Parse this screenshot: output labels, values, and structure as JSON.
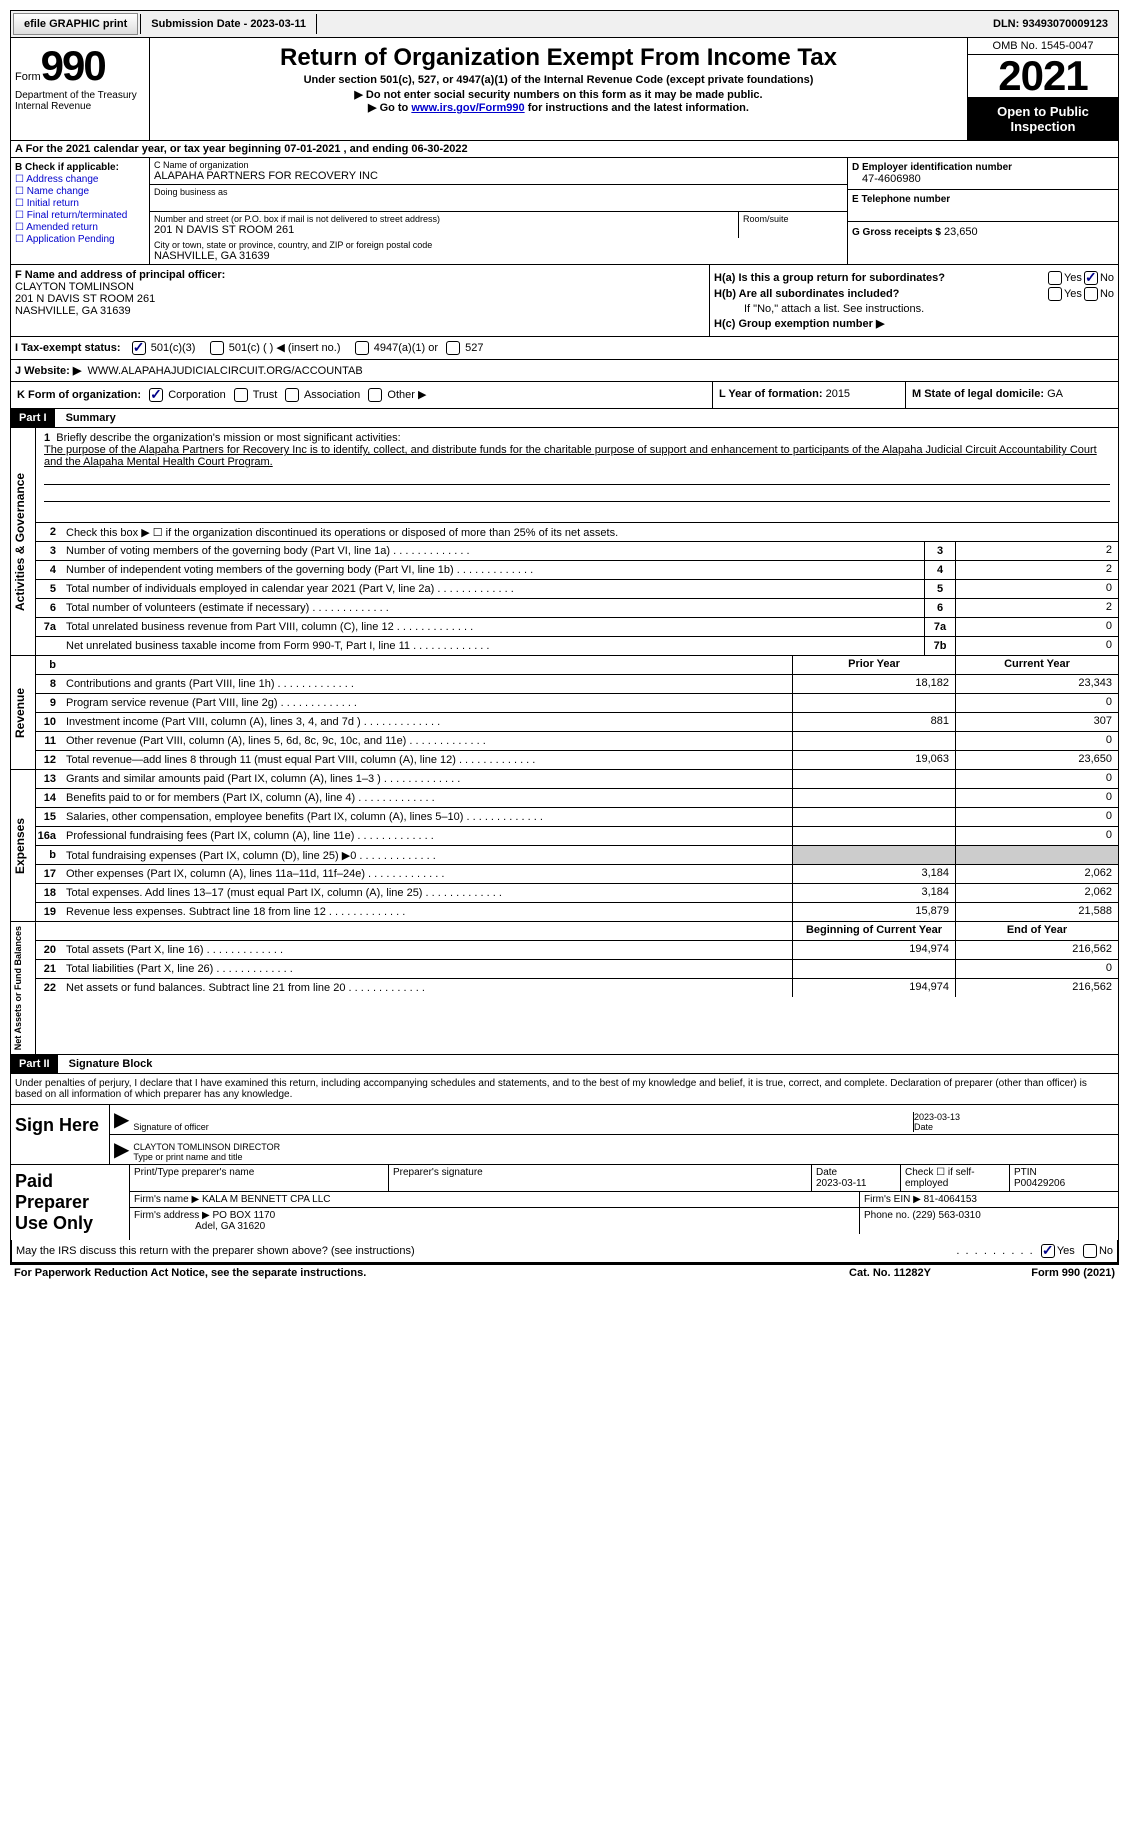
{
  "colors": {
    "link": "#0000cc",
    "header_bg": "#000000",
    "header_fg": "#ffffff",
    "shaded": "#cccccc"
  },
  "top_bar": {
    "efile_btn": "efile GRAPHIC print",
    "submission_date": "Submission Date - 2023-03-11",
    "dln": "DLN: 93493070009123"
  },
  "header": {
    "form_label": "Form",
    "form_number": "990",
    "dept": "Department of the Treasury\nInternal Revenue",
    "title": "Return of Organization Exempt From Income Tax",
    "subtitle": "Under section 501(c), 527, or 4947(a)(1) of the Internal Revenue Code (except private foundations)",
    "note1": "▶ Do not enter social security numbers on this form as it may be made public.",
    "note2_prefix": "▶ Go to ",
    "note2_link": "www.irs.gov/Form990",
    "note2_suffix": " for instructions and the latest information.",
    "omb": "OMB No. 1545-0047",
    "year": "2021",
    "inspection": "Open to Public Inspection"
  },
  "row_a": "A For the 2021 calendar year, or tax year beginning 07-01-2021   , and ending 06-30-2022",
  "section_b": {
    "hdr": "B Check if applicable:",
    "opts": [
      "Address change",
      "Name change",
      "Initial return",
      "Final return/terminated",
      "Amended return",
      "Application Pending"
    ],
    "c_name_lbl": "C Name of organization",
    "c_name": "ALAPAHA PARTNERS FOR RECOVERY INC",
    "dba_lbl": "Doing business as",
    "addr_lbl": "Number and street (or P.O. box if mail is not delivered to street address)",
    "addr": "201 N DAVIS ST ROOM 261",
    "room_lbl": "Room/suite",
    "city_lbl": "City or town, state or province, country, and ZIP or foreign postal code",
    "city": "NASHVILLE, GA  31639",
    "d_ein_lbl": "D Employer identification number",
    "d_ein": "47-4606980",
    "e_tel_lbl": "E Telephone number",
    "g_gross_lbl": "G Gross receipts $",
    "g_gross": "23,650"
  },
  "section_f": {
    "lbl": "F Name and address of principal officer:",
    "name": "CLAYTON TOMLINSON",
    "addr1": "201 N DAVIS ST ROOM 261",
    "addr2": "NASHVILLE, GA  31639"
  },
  "section_h": {
    "ha_lbl": "H(a)  Is this a group return for subordinates?",
    "hb_lbl": "H(b)  Are all subordinates included?",
    "hb_note": "If \"No,\" attach a list. See instructions.",
    "hc_lbl": "H(c)  Group exemption number ▶",
    "yes": "Yes",
    "no": "No"
  },
  "row_i": {
    "lbl": "I   Tax-exempt status:",
    "opt1": "501(c)(3)",
    "opt2": "501(c) (  ) ◀ (insert no.)",
    "opt3": "4947(a)(1) or",
    "opt4": "527"
  },
  "row_j": {
    "lbl": "J   Website: ▶",
    "val": "WWW.ALAPAHAJUDICIALCIRCUIT.ORG/ACCOUNTAB"
  },
  "row_k": {
    "k_lbl": "K Form of organization:",
    "corp": "Corporation",
    "trust": "Trust",
    "assoc": "Association",
    "other": "Other ▶",
    "l_lbl": "L Year of formation:",
    "l_val": "2015",
    "m_lbl": "M State of legal domicile:",
    "m_val": "GA"
  },
  "part1": {
    "hdr": "Part I",
    "title": "Summary",
    "side_activities": "Activities & Governance",
    "side_revenue": "Revenue",
    "side_expenses": "Expenses",
    "side_net": "Net Assets or Fund Balances",
    "line1_lbl": "Briefly describe the organization's mission or most significant activities:",
    "line1_text": "The purpose of the Alapaha Partners for Recovery Inc is to identify, collect, and distribute funds for the charitable purpose of support and enhancement to participants of the Alapaha Judicial Circuit Accountability Court and the Alapaha Mental Health Court Program.",
    "line2": "Check this box ▶ ☐ if the organization discontinued its operations or disposed of more than 25% of its net assets.",
    "lines_gov": [
      {
        "n": "3",
        "t": "Number of voting members of the governing body (Part VI, line 1a)",
        "box": "3",
        "v": "2"
      },
      {
        "n": "4",
        "t": "Number of independent voting members of the governing body (Part VI, line 1b)",
        "box": "4",
        "v": "2"
      },
      {
        "n": "5",
        "t": "Total number of individuals employed in calendar year 2021 (Part V, line 2a)",
        "box": "5",
        "v": "0"
      },
      {
        "n": "6",
        "t": "Total number of volunteers (estimate if necessary)",
        "box": "6",
        "v": "2"
      },
      {
        "n": "7a",
        "t": "Total unrelated business revenue from Part VIII, column (C), line 12",
        "box": "7a",
        "v": "0"
      },
      {
        "n": "",
        "t": "Net unrelated business taxable income from Form 990-T, Part I, line 11",
        "box": "7b",
        "v": "0"
      }
    ],
    "hdr_prior": "Prior Year",
    "hdr_current": "Current Year",
    "lines_rev": [
      {
        "n": "8",
        "t": "Contributions and grants (Part VIII, line 1h)",
        "p": "18,182",
        "c": "23,343"
      },
      {
        "n": "9",
        "t": "Program service revenue (Part VIII, line 2g)",
        "p": "",
        "c": "0"
      },
      {
        "n": "10",
        "t": "Investment income (Part VIII, column (A), lines 3, 4, and 7d )",
        "p": "881",
        "c": "307"
      },
      {
        "n": "11",
        "t": "Other revenue (Part VIII, column (A), lines 5, 6d, 8c, 9c, 10c, and 11e)",
        "p": "",
        "c": "0"
      },
      {
        "n": "12",
        "t": "Total revenue—add lines 8 through 11 (must equal Part VIII, column (A), line 12)",
        "p": "19,063",
        "c": "23,650"
      }
    ],
    "lines_exp": [
      {
        "n": "13",
        "t": "Grants and similar amounts paid (Part IX, column (A), lines 1–3 )",
        "p": "",
        "c": "0"
      },
      {
        "n": "14",
        "t": "Benefits paid to or for members (Part IX, column (A), line 4)",
        "p": "",
        "c": "0"
      },
      {
        "n": "15",
        "t": "Salaries, other compensation, employee benefits (Part IX, column (A), lines 5–10)",
        "p": "",
        "c": "0"
      },
      {
        "n": "16a",
        "t": "Professional fundraising fees (Part IX, column (A), line 11e)",
        "p": "",
        "c": "0"
      },
      {
        "n": "b",
        "t": "Total fundraising expenses (Part IX, column (D), line 25) ▶0",
        "p": "shaded",
        "c": "shaded"
      },
      {
        "n": "17",
        "t": "Other expenses (Part IX, column (A), lines 11a–11d, 11f–24e)",
        "p": "3,184",
        "c": "2,062"
      },
      {
        "n": "18",
        "t": "Total expenses. Add lines 13–17 (must equal Part IX, column (A), line 25)",
        "p": "3,184",
        "c": "2,062"
      },
      {
        "n": "19",
        "t": "Revenue less expenses. Subtract line 18 from line 12",
        "p": "15,879",
        "c": "21,588"
      }
    ],
    "hdr_begin": "Beginning of Current Year",
    "hdr_end": "End of Year",
    "lines_net": [
      {
        "n": "20",
        "t": "Total assets (Part X, line 16)",
        "p": "194,974",
        "c": "216,562"
      },
      {
        "n": "21",
        "t": "Total liabilities (Part X, line 26)",
        "p": "",
        "c": "0"
      },
      {
        "n": "22",
        "t": "Net assets or fund balances. Subtract line 21 from line 20",
        "p": "194,974",
        "c": "216,562"
      }
    ]
  },
  "part2": {
    "hdr": "Part II",
    "title": "Signature Block",
    "decl": "Under penalties of perjury, I declare that I have examined this return, including accompanying schedules and statements, and to the best of my knowledge and belief, it is true, correct, and complete. Declaration of preparer (other than officer) is based on all information of which preparer has any knowledge.",
    "sign_here": "Sign Here",
    "sig_officer_lbl": "Signature of officer",
    "sig_date": "2023-03-13",
    "date_lbl": "Date",
    "officer_name": "CLAYTON TOMLINSON  DIRECTOR",
    "officer_lbl": "Type or print name and title",
    "paid_prep": "Paid Preparer Use Only",
    "prep_name_lbl": "Print/Type preparer's name",
    "prep_sig_lbl": "Preparer's signature",
    "prep_date_lbl": "Date",
    "prep_date": "2023-03-11",
    "check_self": "Check ☐ if self-employed",
    "ptin_lbl": "PTIN",
    "ptin": "P00429206",
    "firm_name_lbl": "Firm's name    ▶",
    "firm_name": "KALA M BENNETT CPA LLC",
    "firm_ein_lbl": "Firm's EIN ▶",
    "firm_ein": "81-4064153",
    "firm_addr_lbl": "Firm's address ▶",
    "firm_addr1": "PO BOX 1170",
    "firm_addr2": "Adel, GA  31620",
    "phone_lbl": "Phone no.",
    "phone": "(229) 563-0310",
    "discuss": "May the IRS discuss this return with the preparer shown above? (see instructions)",
    "yes": "Yes",
    "no": "No"
  },
  "footer": {
    "paperwork": "For Paperwork Reduction Act Notice, see the separate instructions.",
    "cat": "Cat. No. 11282Y",
    "form": "Form 990 (2021)"
  }
}
